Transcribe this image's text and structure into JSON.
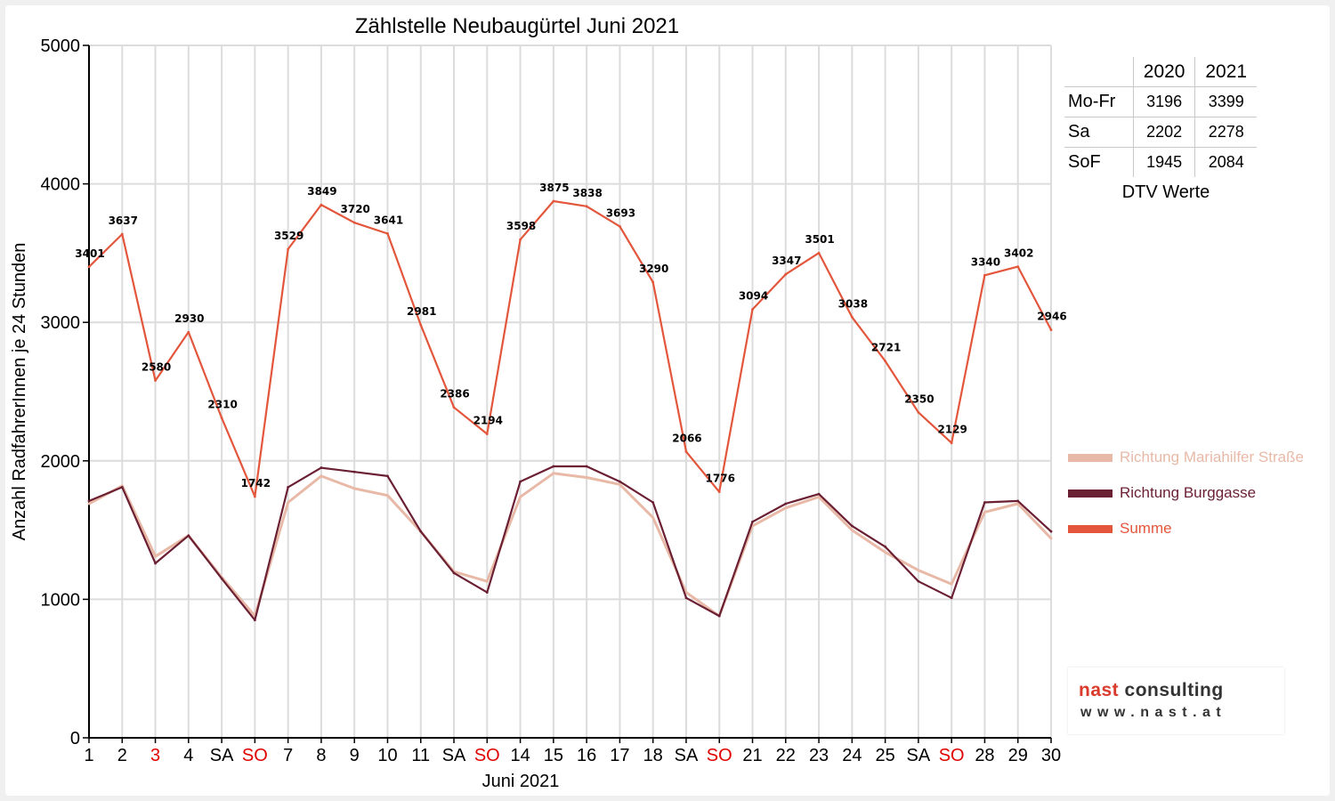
{
  "chart_data": {
    "type": "line",
    "title": "Zählstelle Neubaugürtel Juni 2021",
    "xlabel": "Juni 2021",
    "ylabel": "Anzahl RadfahrerInnen je 24 Stunden",
    "ylim": [
      0,
      5000
    ],
    "yticks": [
      0,
      1000,
      2000,
      3000,
      4000,
      5000
    ],
    "grid": true,
    "categories": [
      "1",
      "2",
      "3",
      "4",
      "SA",
      "SO",
      "7",
      "8",
      "9",
      "10",
      "11",
      "SA",
      "SO",
      "14",
      "15",
      "16",
      "17",
      "18",
      "SA",
      "SO",
      "21",
      "22",
      "23",
      "24",
      "25",
      "SA",
      "SO",
      "28",
      "29",
      "30"
    ],
    "highlight_categories": [
      2,
      5,
      12,
      19,
      26
    ],
    "highlight_color": "#e00000",
    "series": [
      {
        "name": "Richtung Mariahilfer Straße",
        "color": "#e8b9a7",
        "values": [
          1690,
          1820,
          1310,
          1460,
          1160,
          880,
          1700,
          1890,
          1800,
          1750,
          1490,
          1200,
          1130,
          1740,
          1910,
          1880,
          1830,
          1590,
          1050,
          880,
          1530,
          1660,
          1740,
          1500,
          1340,
          1210,
          1110,
          1630,
          1690,
          1440
        ]
      },
      {
        "name": "Richtung Burggasse",
        "color": "#6b1f33",
        "values": [
          1710,
          1810,
          1260,
          1460,
          1150,
          850,
          1810,
          1950,
          1920,
          1890,
          1490,
          1190,
          1050,
          1850,
          1960,
          1960,
          1850,
          1700,
          1010,
          880,
          1560,
          1690,
          1760,
          1530,
          1380,
          1130,
          1010,
          1700,
          1710,
          1490
        ]
      },
      {
        "name": "Summe",
        "color": "#e3563c",
        "values": [
          3401,
          3637,
          2580,
          2930,
          2310,
          1742,
          3529,
          3849,
          3720,
          3641,
          2981,
          2386,
          2194,
          3598,
          3875,
          3838,
          3693,
          3290,
          2066,
          1776,
          3094,
          3347,
          3501,
          3038,
          2721,
          2350,
          2129,
          3340,
          3402,
          2946
        ],
        "labels": [
          "3401",
          "3637",
          "2580",
          "2930",
          "2310",
          "1742",
          "3529",
          "3849",
          "3720",
          "3641",
          "2981",
          "2386",
          "2194",
          "3598",
          "3875",
          "3838",
          "3693",
          "3290",
          "2066",
          "1776",
          "3094",
          "3347",
          "3501",
          "3038",
          "2721",
          "2350",
          "2129",
          "3340",
          "3402",
          "2946"
        ]
      }
    ],
    "legend_position": "right"
  },
  "dtv_table": {
    "caption": "DTV Werte",
    "columns": [
      "2020",
      "2021"
    ],
    "rows": [
      {
        "label": "Mo-Fr",
        "values": [
          "3196",
          "3399"
        ]
      },
      {
        "label": "Sa",
        "values": [
          "2202",
          "2278"
        ]
      },
      {
        "label": "SoF",
        "values": [
          "1945",
          "2084"
        ]
      }
    ]
  },
  "logo": {
    "name_part1": "nast",
    "name_part2": " consulting",
    "website": "www.nast.at"
  }
}
